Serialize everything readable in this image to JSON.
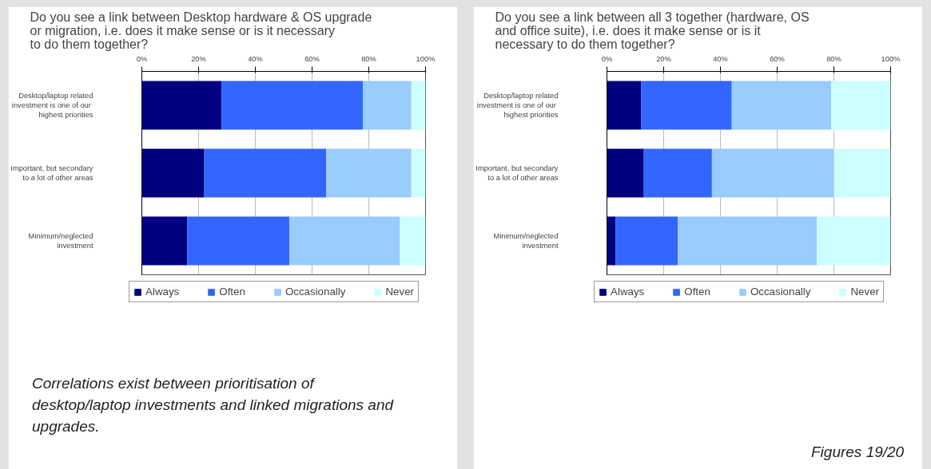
{
  "chart_data": [
    {
      "type": "bar",
      "orientation": "horizontal",
      "stacked": true,
      "title": "Do you see a link between Desktop hardware & OS upgrade or migration, i.e. does it make sense or is it necessary to do them together?",
      "categories": [
        "Desktop/laptop related investment  is one of our highest priorities",
        "Important, but secondary to a lot of other areas",
        "Minimum/neglected investment"
      ],
      "series": [
        {
          "name": "Always",
          "color": "#000080",
          "values": [
            28,
            22,
            16
          ]
        },
        {
          "name": "Often",
          "color": "#3366ff",
          "values": [
            50,
            43,
            36
          ]
        },
        {
          "name": "Occasionally",
          "color": "#99ccff",
          "values": [
            17,
            30,
            39
          ]
        },
        {
          "name": "Never",
          "color": "#ccffff",
          "values": [
            5,
            5,
            9
          ]
        }
      ],
      "xlim": [
        0,
        100
      ],
      "xticks": [
        {
          "value": 0,
          "label": "0%"
        },
        {
          "value": 20,
          "label": "20%"
        },
        {
          "value": 40,
          "label": "40%"
        },
        {
          "value": 60,
          "label": "60%"
        },
        {
          "value": 80,
          "label": "80%"
        },
        {
          "value": 100,
          "label": "100%"
        }
      ],
      "grid": "x",
      "legend": "bottom",
      "annotations": [
        "Correlations exist between prioritisation of desktop/laptop investments and linked migrations and upgrades."
      ]
    },
    {
      "type": "bar",
      "orientation": "horizontal",
      "stacked": true,
      "title": "Do you see a link between all 3 together (hardware, OS and office suite), i.e. does it make sense or is it necessary to do them together?",
      "categories": [
        "Desktop/laptop related investment  is one of our highest priorities",
        "Important, but secondary to a lot of other areas",
        "Minimum/neglected investment"
      ],
      "series": [
        {
          "name": "Always",
          "color": "#000080",
          "values": [
            12,
            13,
            3
          ]
        },
        {
          "name": "Often",
          "color": "#3366ff",
          "values": [
            32,
            24,
            22
          ]
        },
        {
          "name": "Occasionally",
          "color": "#99ccff",
          "values": [
            35,
            43,
            49
          ]
        },
        {
          "name": "Never",
          "color": "#ccffff",
          "values": [
            21,
            20,
            26
          ]
        }
      ],
      "xlim": [
        0,
        100
      ],
      "xticks": [
        {
          "value": 0,
          "label": "0%"
        },
        {
          "value": 20,
          "label": "20%"
        },
        {
          "value": 40,
          "label": "40%"
        },
        {
          "value": 60,
          "label": "60%"
        },
        {
          "value": 80,
          "label": "80%"
        },
        {
          "value": 100,
          "label": "100%"
        }
      ],
      "grid": "x",
      "legend": "bottom",
      "annotations": [
        "Figures 19/20"
      ]
    }
  ]
}
